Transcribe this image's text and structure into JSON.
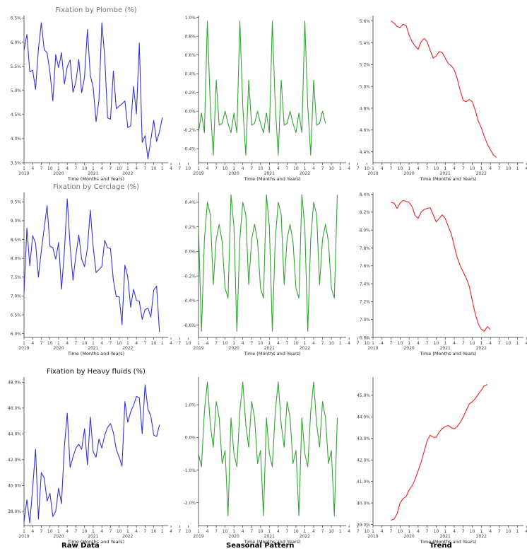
{
  "colors": {
    "raw": "#3333dd",
    "seasonal": "#33a333",
    "trend": "#ee2222",
    "axis": "#333333",
    "tick": "#444444"
  },
  "column_labels": {
    "raw": "Raw Data",
    "seasonal": "Seasonal Pattern",
    "trend": "Trend"
  },
  "x_axis": {
    "month_ticks": [
      "1",
      "4",
      "7",
      "10",
      "1",
      "4",
      "7",
      "10",
      "1",
      "4",
      "7",
      "10",
      "1",
      "4",
      "7",
      "10",
      "1",
      "4",
      "7",
      "10"
    ],
    "year_labels": [
      "2019",
      "2020",
      "2021",
      "2022"
    ],
    "xlabel": "Time (Months and Years)"
  },
  "chart_data": [
    {
      "type": "line",
      "row": 0,
      "panel": "raw",
      "title": "Fixation by Plombe (%)",
      "xlabel": "Time (Months and Years)",
      "ylim": [
        3.5,
        6.55
      ],
      "yticks": [
        3.5,
        4.0,
        4.5,
        5.0,
        5.5,
        6.0,
        6.5
      ],
      "ytick_labels": [
        "3.5%",
        "4.0%",
        "4.5%",
        "5.0%",
        "5.5%",
        "6.0%",
        "6.5%"
      ],
      "x_start": "2019-01",
      "x_step": "1 month",
      "values": [
        5.83,
        6.16,
        5.38,
        5.42,
        5.02,
        5.86,
        6.4,
        5.84,
        5.78,
        5.37,
        4.78,
        5.74,
        5.47,
        5.78,
        5.13,
        5.49,
        5.63,
        4.96,
        5.18,
        5.64,
        4.95,
        5.28,
        6.26,
        5.31,
        5.06,
        4.35,
        4.8,
        6.4,
        5.7,
        4.43,
        4.4,
        5.4,
        4.62,
        4.67,
        4.72,
        4.78,
        4.23,
        4.26,
        5.08,
        4.51,
        5.98,
        3.92,
        4.06,
        3.58,
        3.97,
        4.38,
        3.94,
        4.14,
        4.44
      ]
    },
    {
      "type": "line",
      "row": 0,
      "panel": "seasonal",
      "title": "",
      "xlabel": "Time (Months and Years)",
      "ylim": [
        -0.55,
        1.02
      ],
      "yticks": [
        -0.4,
        -0.2,
        0.0,
        0.2,
        0.4,
        0.6,
        0.8,
        1.0
      ],
      "ytick_labels": [
        "-0.4%",
        "-0.2%",
        "0.0%",
        "0.2%",
        "0.4%",
        "0.6%",
        "0.8%",
        "1.0%"
      ],
      "x_start": "2019-01",
      "x_step": "1 month",
      "values": [
        -0.23,
        -0.02,
        -0.23,
        0.96,
        0.05,
        -0.47,
        0.33,
        -0.15,
        -0.13,
        0.0,
        -0.13,
        -0.23,
        -0.02,
        -0.23,
        0.96,
        0.05,
        -0.47,
        0.33,
        -0.15,
        -0.13,
        0.0,
        -0.13,
        -0.23,
        -0.02,
        -0.23,
        0.96,
        0.05,
        -0.47,
        0.33,
        -0.15,
        -0.13,
        0.0,
        -0.13,
        -0.23,
        -0.02,
        -0.23,
        0.96,
        0.05,
        -0.47,
        0.33,
        -0.15,
        -0.13,
        0.0,
        -0.13
      ]
    },
    {
      "type": "line",
      "row": 0,
      "panel": "trend",
      "title": "",
      "xlabel": "Time (Months and Years)",
      "ylim": [
        4.3,
        5.65
      ],
      "yticks": [
        4.4,
        4.6,
        4.8,
        5.0,
        5.2,
        5.4,
        5.6
      ],
      "ytick_labels": [
        "4.4%",
        "4.6%",
        "4.8%",
        "5.0%",
        "5.2%",
        "5.4%",
        "5.6%"
      ],
      "x_start": "2019-07",
      "x_step": "1 month",
      "values": [
        5.6,
        5.58,
        5.55,
        5.54,
        5.57,
        5.56,
        5.47,
        5.41,
        5.37,
        5.34,
        5.41,
        5.44,
        5.41,
        5.33,
        5.26,
        5.28,
        5.32,
        5.31,
        5.26,
        5.21,
        5.19,
        5.15,
        5.07,
        4.96,
        4.87,
        4.86,
        4.88,
        4.86,
        4.78,
        4.68,
        4.62,
        4.54,
        4.47,
        4.42,
        4.37,
        4.35
      ]
    },
    {
      "type": "line",
      "row": 1,
      "panel": "raw",
      "title": "Fixation by Cerclage (%)",
      "xlabel": "Time (Months and Years)",
      "ylim": [
        5.9,
        9.75
      ],
      "yticks": [
        6.0,
        6.5,
        7.0,
        7.5,
        8.0,
        8.5,
        9.0,
        9.5
      ],
      "ytick_labels": [
        "6.0%",
        "6.5%",
        "7.0%",
        "7.5%",
        "8.0%",
        "8.5%",
        "9.0%",
        "9.5%"
      ],
      "x_start": "2019-01",
      "x_step": "1 month",
      "values": [
        7.08,
        8.8,
        7.8,
        8.6,
        8.4,
        7.5,
        8.2,
        8.8,
        9.4,
        8.32,
        8.28,
        7.98,
        8.42,
        7.18,
        8.18,
        9.58,
        8.32,
        7.42,
        8.08,
        8.62,
        7.98,
        7.78,
        8.28,
        9.28,
        8.3,
        7.62,
        7.7,
        7.78,
        8.48,
        8.28,
        8.26,
        7.42,
        6.98,
        6.98,
        6.24,
        7.82,
        7.5,
        6.7,
        7.18,
        6.88,
        6.86,
        6.38,
        6.64,
        6.68,
        6.44,
        7.16,
        7.26,
        6.04
      ]
    },
    {
      "type": "line",
      "row": 1,
      "panel": "seasonal",
      "title": "",
      "xlabel": "Time (Months and Years)",
      "ylim": [
        -0.7,
        0.48
      ],
      "yticks": [
        -0.6,
        -0.4,
        -0.2,
        0.0,
        0.2,
        0.4
      ],
      "ytick_labels": [
        "-0.6%",
        "-0.4%",
        "-0.2%",
        "0.0%",
        "0.2%",
        "0.4%"
      ],
      "x_start": "2019-01",
      "x_step": "1 month",
      "values": [
        0.2,
        -0.65,
        0.1,
        0.4,
        0.3,
        -0.27,
        0.1,
        0.22,
        0.08,
        -0.3,
        -0.38,
        0.46,
        0.2,
        -0.65,
        0.1,
        0.4,
        0.3,
        -0.27,
        0.1,
        0.22,
        0.08,
        -0.3,
        -0.38,
        0.46,
        0.2,
        -0.65,
        0.1,
        0.4,
        0.3,
        -0.27,
        0.1,
        0.22,
        0.08,
        -0.3,
        -0.38,
        0.46,
        0.2,
        -0.65,
        0.1,
        0.4,
        0.3,
        -0.27,
        0.1,
        0.22,
        0.08,
        -0.3,
        -0.38,
        0.46
      ]
    },
    {
      "type": "line",
      "row": 1,
      "panel": "trend",
      "title": "",
      "xlabel": "Time (Months and Years)",
      "ylim": [
        6.8,
        8.42
      ],
      "yticks": [
        6.8,
        7.0,
        7.2,
        7.4,
        7.6,
        7.8,
        8.0,
        8.2,
        8.4
      ],
      "ytick_labels": [
        "6.8%",
        "7.0%",
        "7.2%",
        "7.4%",
        "7.6%",
        "7.8%",
        "8.0%",
        "8.2%",
        "8.4%"
      ],
      "x_start": "2019-07",
      "x_step": "1 month",
      "values": [
        8.31,
        8.3,
        8.24,
        8.3,
        8.33,
        8.32,
        8.31,
        8.26,
        8.16,
        8.13,
        8.2,
        8.23,
        8.24,
        8.25,
        8.17,
        8.09,
        8.13,
        8.17,
        8.13,
        8.04,
        7.96,
        7.82,
        7.69,
        7.6,
        7.53,
        7.46,
        7.37,
        7.21,
        7.06,
        6.95,
        6.89,
        6.87,
        6.92,
        6.89
      ]
    },
    {
      "type": "line",
      "row": 2,
      "panel": "raw",
      "title": "Fixation by Heavy fluids (%)",
      "xlabel": "Time (Months and Years)",
      "ylim": [
        36.9,
        48.4
      ],
      "yticks": [
        38.0,
        40.0,
        42.0,
        44.0,
        46.0,
        48.0
      ],
      "ytick_labels": [
        "38.0%",
        "40.0%",
        "42.0%",
        "44.0%",
        "46.0%",
        "48.0%"
      ],
      "x_start": "2019-01",
      "x_step": "1 month",
      "values": [
        37.2,
        38.9,
        37.1,
        39.8,
        42.8,
        37.4,
        41.0,
        40.6,
        38.8,
        39.4,
        37.6,
        38.0,
        39.8,
        38.6,
        43.0,
        45.6,
        41.4,
        42.2,
        42.9,
        43.2,
        42.8,
        44.4,
        41.6,
        45.3,
        42.6,
        42.2,
        43.6,
        42.9,
        43.9,
        44.5,
        44.8,
        44.1,
        42.8,
        42.2,
        41.5,
        46.5,
        44.9,
        45.7,
        46.2,
        46.9,
        46.8,
        44.0,
        47.8,
        45.9,
        45.4,
        43.9,
        43.8,
        44.7
      ]
    },
    {
      "type": "line",
      "row": 2,
      "panel": "seasonal",
      "title": "",
      "xlabel": "Time (Months and Years)",
      "ylim": [
        -2.7,
        1.85
      ],
      "yticks": [
        -2.0,
        -1.0,
        0.0,
        1.0
      ],
      "ytick_labels": [
        "-2.0%",
        "-1.0%",
        "0.0%",
        "1.0%"
      ],
      "x_start": "2019-01",
      "x_step": "1 month",
      "values": [
        -0.5,
        -0.9,
        0.8,
        1.7,
        0.4,
        -0.3,
        1.1,
        0.6,
        -0.8,
        -0.4,
        -2.4,
        0.6,
        -0.5,
        -0.9,
        0.8,
        1.7,
        0.4,
        -0.3,
        1.1,
        0.6,
        -0.8,
        -0.4,
        -2.4,
        0.6,
        -0.5,
        -0.9,
        0.8,
        1.7,
        0.4,
        -0.3,
        1.1,
        0.6,
        -0.8,
        -0.4,
        -2.4,
        0.6,
        -0.5,
        -0.9,
        0.8,
        1.7,
        0.4,
        -0.3,
        1.1,
        0.6,
        -0.8,
        -0.4,
        -2.4,
        0.6
      ]
    },
    {
      "type": "line",
      "row": 2,
      "panel": "trend",
      "title": "",
      "xlabel": "Time (Months and Years)",
      "ylim": [
        38.95,
        45.85
      ],
      "yticks": [
        39.0,
        40.0,
        41.0,
        42.0,
        43.0,
        44.0,
        45.0
      ],
      "ytick_labels": [
        "39.0%",
        "40.0%",
        "41.0%",
        "42.0%",
        "43.0%",
        "44.0%",
        "45.0%"
      ],
      "x_start": "2019-07",
      "x_step": "1 month",
      "values": [
        39.2,
        39.25,
        39.5,
        40.0,
        40.2,
        40.3,
        40.6,
        40.8,
        41.1,
        41.5,
        41.9,
        42.4,
        42.9,
        43.15,
        43.05,
        43.05,
        43.3,
        43.45,
        43.55,
        43.6,
        43.5,
        43.45,
        43.55,
        43.75,
        44.0,
        44.3,
        44.6,
        44.7,
        44.85,
        45.05,
        45.25,
        45.45,
        45.5
      ]
    }
  ]
}
